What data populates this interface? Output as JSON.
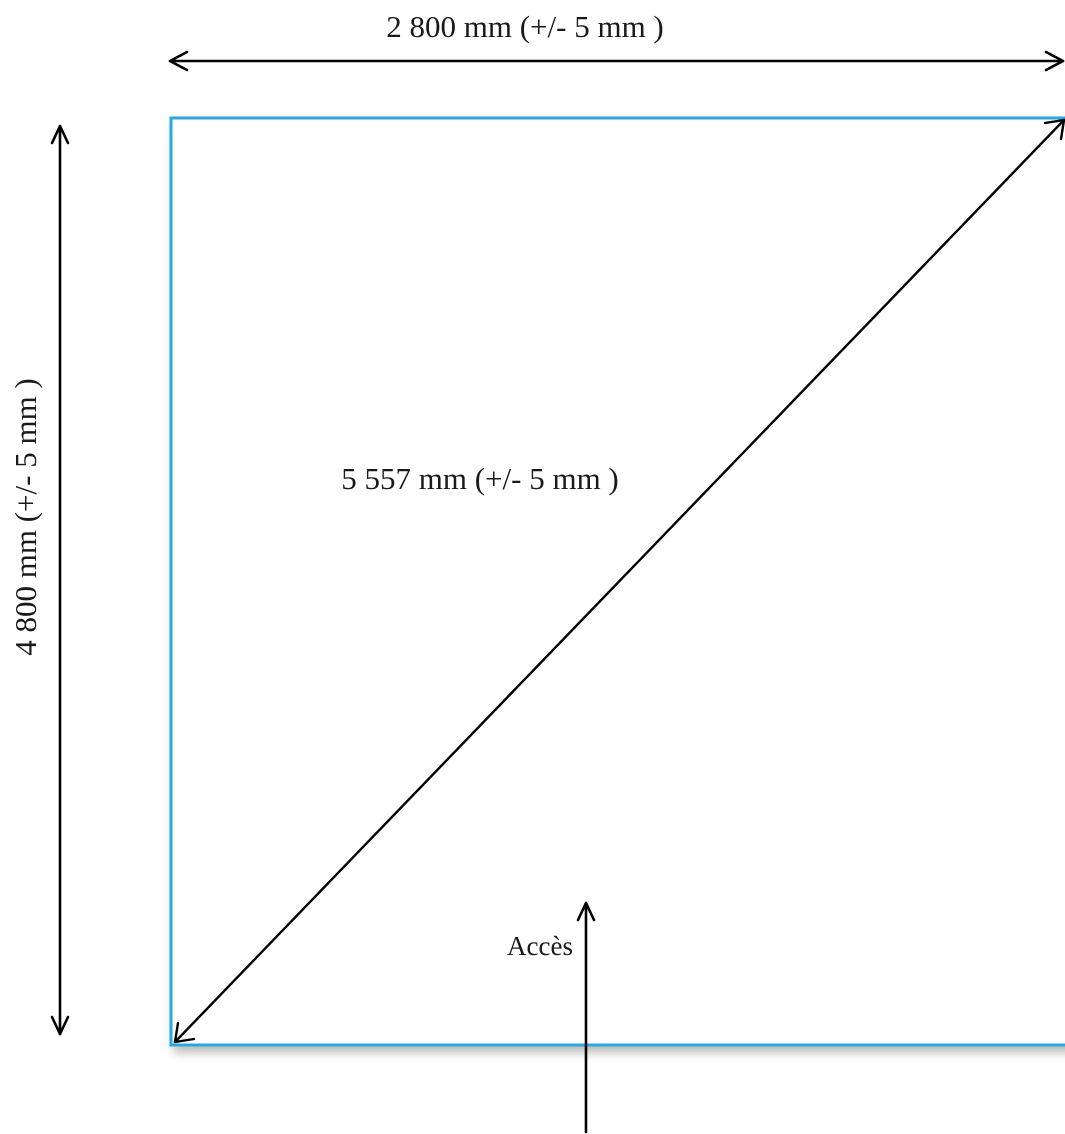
{
  "dimensions": {
    "width_label": "2 800 mm (+/- 5 mm )",
    "height_label": "4 800 mm (+/- 5 mm )",
    "diagonal_label": "5 557 mm (+/- 5 mm )"
  },
  "access": {
    "label": "Accès"
  },
  "colors": {
    "outline": "#29a9e0",
    "arrow": "#000000",
    "text": "#1a1a1a",
    "background": "#ffffff"
  }
}
